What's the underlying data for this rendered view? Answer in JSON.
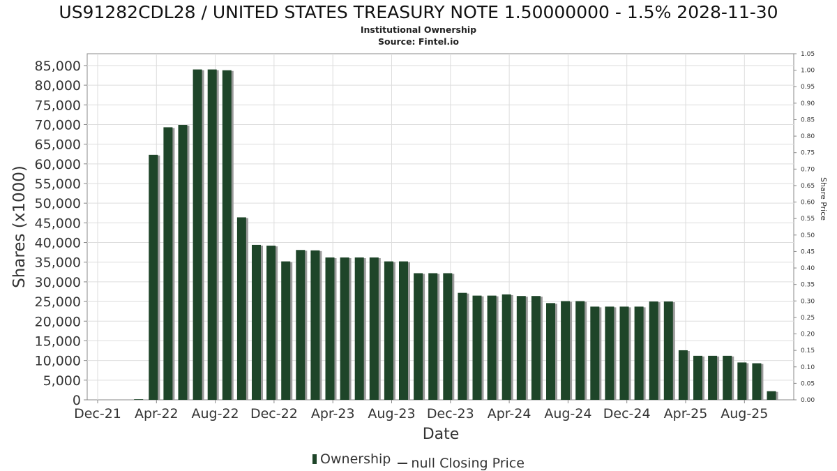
{
  "header": {
    "title": "US91282CDL28 / UNITED STATES TREASURY NOTE 1.50000000 - 1.5% 2028-11-30",
    "subtitle": "Institutional Ownership",
    "source": "Source: Fintel.io"
  },
  "legend": {
    "items": [
      "Ownership",
      "null Closing Price"
    ]
  },
  "colors": {
    "bar": "#1e4529",
    "bar_shadow": "#9a9a9a",
    "grid": "#dddddd",
    "axis": "#888888"
  },
  "chart_data": {
    "type": "bar",
    "title": "US91282CDL28 / UNITED STATES TREASURY NOTE 1.50000000 - 1.5% 2028-11-30",
    "subtitle": "Institutional Ownership",
    "xlabel": "Date",
    "ylabel": "Shares (x1000)",
    "y2label": "Share Price",
    "ylim": [
      0,
      88000
    ],
    "y2lim": [
      0,
      1.05
    ],
    "yticks": [
      "0",
      "5,000",
      "10,000",
      "15,000",
      "20,000",
      "25,000",
      "30,000",
      "35,000",
      "40,000",
      "45,000",
      "50,000",
      "55,000",
      "60,000",
      "65,000",
      "70,000",
      "75,000",
      "80,000",
      "85,000"
    ],
    "y2ticks": [
      "0.00",
      "0.05",
      "0.10",
      "0.15",
      "0.20",
      "0.25",
      "0.30",
      "0.35",
      "0.40",
      "0.45",
      "0.50",
      "0.55",
      "0.60",
      "0.65",
      "0.70",
      "0.75",
      "0.80",
      "0.85",
      "0.90",
      "0.95",
      "1.00",
      "1.05"
    ],
    "xticks": [
      "Dec-21",
      "Apr-22",
      "Aug-22",
      "Dec-22",
      "Apr-23",
      "Aug-23",
      "Dec-23",
      "Apr-24",
      "Aug-24",
      "Dec-24",
      "Apr-25",
      "Aug-25"
    ],
    "grid": true,
    "legend_position": "bottom",
    "series": [
      {
        "name": "Ownership",
        "values": [
          0,
          0,
          150,
          62300,
          69300,
          69900,
          84000,
          84000,
          83800,
          46400,
          39400,
          39200,
          35200,
          38100,
          38000,
          36200,
          36200,
          36200,
          36200,
          35200,
          35200,
          32200,
          32200,
          32200,
          27200,
          26500,
          26500,
          26800,
          26400,
          26400,
          24600,
          25100,
          25100,
          23700,
          23700,
          23700,
          23700,
          25000,
          25000,
          12600,
          11200,
          11200,
          11200,
          9500,
          9300,
          2200
        ]
      },
      {
        "name": "null Closing Price",
        "values": []
      }
    ]
  }
}
